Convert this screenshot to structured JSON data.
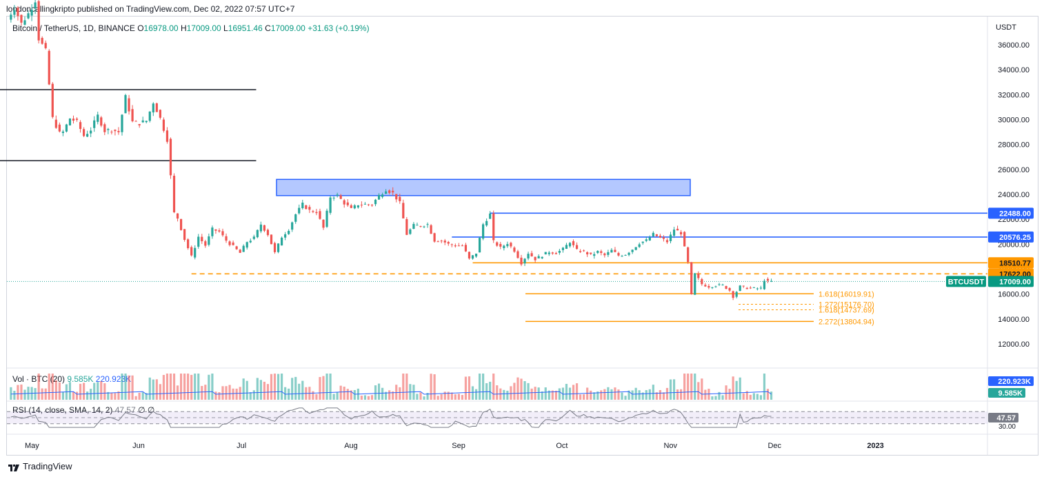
{
  "publisher_line": "londoncallingkripto published on TradingView.com, Dec 02, 2022 07:57 UTC+7",
  "brand": "TradingView",
  "legend": {
    "symbol": "Bitcoin / TetherUS, 1D, BINANCE",
    "open_label": "O",
    "open": "16978.00",
    "high_label": "H",
    "high": "17009.00",
    "low_label": "L",
    "low": "16951.46",
    "close_label": "C",
    "close": "17009.00",
    "change": "+31.63 (+0.19%)"
  },
  "volume_legend": {
    "label": "Vol · BTC (20)",
    "v1": "9.585K",
    "v2": "220.923K"
  },
  "rsi_legend": {
    "label": "RSI (14, close, SMA, 14, 2)",
    "v1": "47.57",
    "v2": "∅",
    "v3": "∅"
  },
  "colors": {
    "up": "#26a69a",
    "down": "#ef5350",
    "orange": "#ff9800",
    "blue": "#2962ff",
    "black": "#131722"
  },
  "chart_data": {
    "type": "candlestick",
    "y_unit": "USDT",
    "ylim": [
      10600,
      39000
    ],
    "y_ticks": [
      12000,
      14000,
      16000,
      18000,
      20000,
      22000,
      24000,
      26000,
      28000,
      30000,
      32000,
      34000,
      36000
    ],
    "y_tick_labels": [
      "12000.00",
      "14000.00",
      "16000.00",
      "18000.00",
      "20000.00",
      "22000.00",
      "24000.00",
      "26000.00",
      "28000.00",
      "30000.00",
      "32000.00",
      "34000.00",
      "36000.00"
    ],
    "x_labels": [
      {
        "text": "May",
        "date": "2022-05-01"
      },
      {
        "text": "Jun",
        "date": "2022-06-01"
      },
      {
        "text": "Jul",
        "date": "2022-07-01"
      },
      {
        "text": "Aug",
        "date": "2022-08-01"
      },
      {
        "text": "Sep",
        "date": "2022-09-01"
      },
      {
        "text": "Oct",
        "date": "2022-10-01"
      },
      {
        "text": "Nov",
        "date": "2022-11-01"
      },
      {
        "text": "Dec",
        "date": "2022-12-01"
      },
      {
        "text": "2023",
        "date": "2023-01-01"
      }
    ],
    "close_path": [
      [
        "2022-04-26",
        38100
      ],
      [
        "2022-04-28",
        39000
      ],
      [
        "2022-04-30",
        37700
      ],
      [
        "2022-05-02",
        38500
      ],
      [
        "2022-05-04",
        39600
      ],
      [
        "2022-05-05",
        36500
      ],
      [
        "2022-05-07",
        35500
      ],
      [
        "2022-05-09",
        30100
      ],
      [
        "2022-05-11",
        28900
      ],
      [
        "2022-05-12",
        29000
      ],
      [
        "2022-05-14",
        30100
      ],
      [
        "2022-05-16",
        29800
      ],
      [
        "2022-05-18",
        28700
      ],
      [
        "2022-05-20",
        29200
      ],
      [
        "2022-05-22",
        30300
      ],
      [
        "2022-05-24",
        29100
      ],
      [
        "2022-05-26",
        29200
      ],
      [
        "2022-05-28",
        29000
      ],
      [
        "2022-05-30",
        31800
      ],
      [
        "2022-06-01",
        29800
      ],
      [
        "2022-06-03",
        29700
      ],
      [
        "2022-06-05",
        29900
      ],
      [
        "2022-06-07",
        31400
      ],
      [
        "2022-06-09",
        30100
      ],
      [
        "2022-06-11",
        28400
      ],
      [
        "2022-06-13",
        22500
      ],
      [
        "2022-06-14",
        22100
      ],
      [
        "2022-06-16",
        20400
      ],
      [
        "2022-06-18",
        19000
      ],
      [
        "2022-06-20",
        20600
      ],
      [
        "2022-06-22",
        19900
      ],
      [
        "2022-06-24",
        21200
      ],
      [
        "2022-06-26",
        21000
      ],
      [
        "2022-06-28",
        20300
      ],
      [
        "2022-06-30",
        19800
      ],
      [
        "2022-07-02",
        19300
      ],
      [
        "2022-07-04",
        20200
      ],
      [
        "2022-07-06",
        20500
      ],
      [
        "2022-07-08",
        21600
      ],
      [
        "2022-07-10",
        20800
      ],
      [
        "2022-07-12",
        19300
      ],
      [
        "2022-07-14",
        20600
      ],
      [
        "2022-07-16",
        21200
      ],
      [
        "2022-07-18",
        22400
      ],
      [
        "2022-07-20",
        23200
      ],
      [
        "2022-07-22",
        22700
      ],
      [
        "2022-07-24",
        22600
      ],
      [
        "2022-07-26",
        21300
      ],
      [
        "2022-07-28",
        23800
      ],
      [
        "2022-07-30",
        23900
      ],
      [
        "2022-08-01",
        23300
      ],
      [
        "2022-08-03",
        22800
      ],
      [
        "2022-08-05",
        23200
      ],
      [
        "2022-08-07",
        23200
      ],
      [
        "2022-08-09",
        23200
      ],
      [
        "2022-08-11",
        23900
      ],
      [
        "2022-08-13",
        24400
      ],
      [
        "2022-08-15",
        24100
      ],
      [
        "2022-08-17",
        23300
      ],
      [
        "2022-08-19",
        20800
      ],
      [
        "2022-08-21",
        21500
      ],
      [
        "2022-08-23",
        21500
      ],
      [
        "2022-08-25",
        21600
      ],
      [
        "2022-08-27",
        20300
      ],
      [
        "2022-08-29",
        20300
      ],
      [
        "2022-08-31",
        20000
      ],
      [
        "2022-09-02",
        19900
      ],
      [
        "2022-09-04",
        19900
      ],
      [
        "2022-09-06",
        18800
      ],
      [
        "2022-09-08",
        19300
      ],
      [
        "2022-09-10",
        21600
      ],
      [
        "2022-09-12",
        22400
      ],
      [
        "2022-09-13",
        20200
      ],
      [
        "2022-09-15",
        19700
      ],
      [
        "2022-09-17",
        20100
      ],
      [
        "2022-09-19",
        19500
      ],
      [
        "2022-09-21",
        18500
      ],
      [
        "2022-09-23",
        19300
      ],
      [
        "2022-09-25",
        18800
      ],
      [
        "2022-09-27",
        19100
      ],
      [
        "2022-09-29",
        19400
      ],
      [
        "2022-10-01",
        19300
      ],
      [
        "2022-10-03",
        19600
      ],
      [
        "2022-10-05",
        20200
      ],
      [
        "2022-10-07",
        19500
      ],
      [
        "2022-10-09",
        19400
      ],
      [
        "2022-10-11",
        19100
      ],
      [
        "2022-10-13",
        19400
      ],
      [
        "2022-10-15",
        19100
      ],
      [
        "2022-10-17",
        19500
      ],
      [
        "2022-10-19",
        19100
      ],
      [
        "2022-10-21",
        19200
      ],
      [
        "2022-10-23",
        19600
      ],
      [
        "2022-10-25",
        20100
      ],
      [
        "2022-10-27",
        20300
      ],
      [
        "2022-10-29",
        20800
      ],
      [
        "2022-10-31",
        20500
      ],
      [
        "2022-11-02",
        20200
      ],
      [
        "2022-11-04",
        21200
      ],
      [
        "2022-11-06",
        20900
      ],
      [
        "2022-11-08",
        18500
      ],
      [
        "2022-11-09",
        15900
      ],
      [
        "2022-11-10",
        17600
      ],
      [
        "2022-11-12",
        16800
      ],
      [
        "2022-11-14",
        16600
      ],
      [
        "2022-11-16",
        16700
      ],
      [
        "2022-11-18",
        16700
      ],
      [
        "2022-11-20",
        16300
      ],
      [
        "2022-11-21",
        15800
      ],
      [
        "2022-11-23",
        16600
      ],
      [
        "2022-11-25",
        16500
      ],
      [
        "2022-11-27",
        16450
      ],
      [
        "2022-11-29",
        16450
      ],
      [
        "2022-11-30",
        17150
      ],
      [
        "2022-12-01",
        16978
      ],
      [
        "2022-12-02",
        17009
      ]
    ]
  },
  "annotations": {
    "range_box": {
      "x1": "2022-04-28",
      "x2": "2022-06-12",
      "top": 32400,
      "bottom": 26700
    },
    "supply_zone": {
      "x1": "2022-07-13",
      "x2": "2022-11-06",
      "top": 25200,
      "bottom": 23900
    },
    "levels": [
      {
        "name": "level-22488",
        "price": 22488,
        "from": "2022-09-12",
        "label": "22488.00",
        "color": "#2962ff",
        "style": "solid"
      },
      {
        "name": "level-20576",
        "price": 20576.25,
        "from": "2022-09-01",
        "label": "20576.25",
        "color": "#2962ff",
        "style": "solid"
      },
      {
        "name": "level-18510",
        "price": 18510.77,
        "from": "2022-09-07",
        "label": "18510.77",
        "color": "#ff9800",
        "style": "solid"
      },
      {
        "name": "level-17622",
        "price": 17622,
        "from": "2022-06-18",
        "label": "17622.00",
        "color": "#ff9800",
        "style": "dashed"
      }
    ],
    "fib_lines": [
      {
        "price": 16019.91,
        "label": "1.618(16019.91)",
        "x1": "2022-09-21",
        "x2": "2022-12-26",
        "style": "solid"
      },
      {
        "price": 15176.7,
        "label": "1.272(15176.70)",
        "x1": "2022-11-21",
        "x2": "2022-12-26",
        "style": "dashed"
      },
      {
        "price": 14737.69,
        "label": "1.618(14737.69)",
        "x1": "2022-11-21",
        "x2": "2022-12-26",
        "style": "dashed"
      },
      {
        "price": 13804.94,
        "label": "2.272(13804.94)",
        "x1": "2022-09-21",
        "x2": "2022-12-26",
        "style": "solid"
      }
    ],
    "last_price": {
      "price": 17009,
      "symbol": "BTCUSDT",
      "label": "17009.00"
    }
  },
  "volume_pane": {
    "badges": [
      {
        "label": "220.923K",
        "color": "#2962ff"
      },
      {
        "label": "9.585K",
        "color": "#26a69a"
      }
    ]
  },
  "rsi_pane": {
    "band_upper": 70,
    "band_lower": 30,
    "mid": 50,
    "value_label": "47.57",
    "lower_label": "30.00"
  }
}
